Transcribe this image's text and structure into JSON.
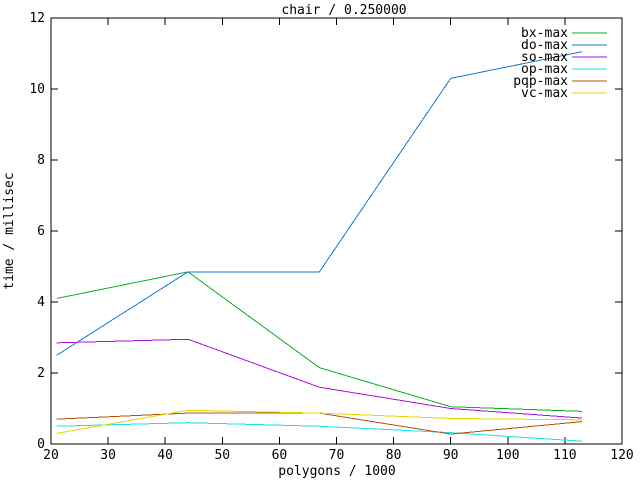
{
  "chart_data": {
    "type": "line",
    "title": "chair / 0.250000",
    "xlabel": "polygons / 1000",
    "ylabel": "time / millisec",
    "xlim": [
      20,
      120
    ],
    "ylim": [
      0,
      12
    ],
    "xticks": [
      20,
      30,
      40,
      50,
      60,
      70,
      80,
      90,
      100,
      110,
      120
    ],
    "yticks": [
      0,
      2,
      4,
      6,
      8,
      10,
      12
    ],
    "grid": false,
    "legend_position": "top-right-inside",
    "background_color": "#ffffff",
    "axis_color": "#000000",
    "x": [
      21,
      44,
      67,
      90,
      113
    ],
    "series": [
      {
        "name": "bx-max",
        "color": "#0aaf23",
        "values": [
          4.1,
          4.85,
          2.15,
          1.05,
          0.92
        ]
      },
      {
        "name": "do-max",
        "color": "#1778d2",
        "values": [
          2.5,
          4.85,
          4.85,
          10.3,
          11.05
        ]
      },
      {
        "name": "so-max",
        "color": "#ad10dd",
        "values": [
          2.85,
          2.95,
          1.6,
          1.0,
          0.73
        ]
      },
      {
        "name": "op-max",
        "color": "#17e3e8",
        "values": [
          0.5,
          0.6,
          0.5,
          0.32,
          0.08
        ]
      },
      {
        "name": "pqp-max",
        "color": "#b5530b",
        "values": [
          0.7,
          0.87,
          0.87,
          0.28,
          0.63
        ]
      },
      {
        "name": "vc-max",
        "color": "#e6d800",
        "values": [
          0.3,
          0.95,
          0.87,
          0.72,
          0.68
        ]
      }
    ]
  }
}
